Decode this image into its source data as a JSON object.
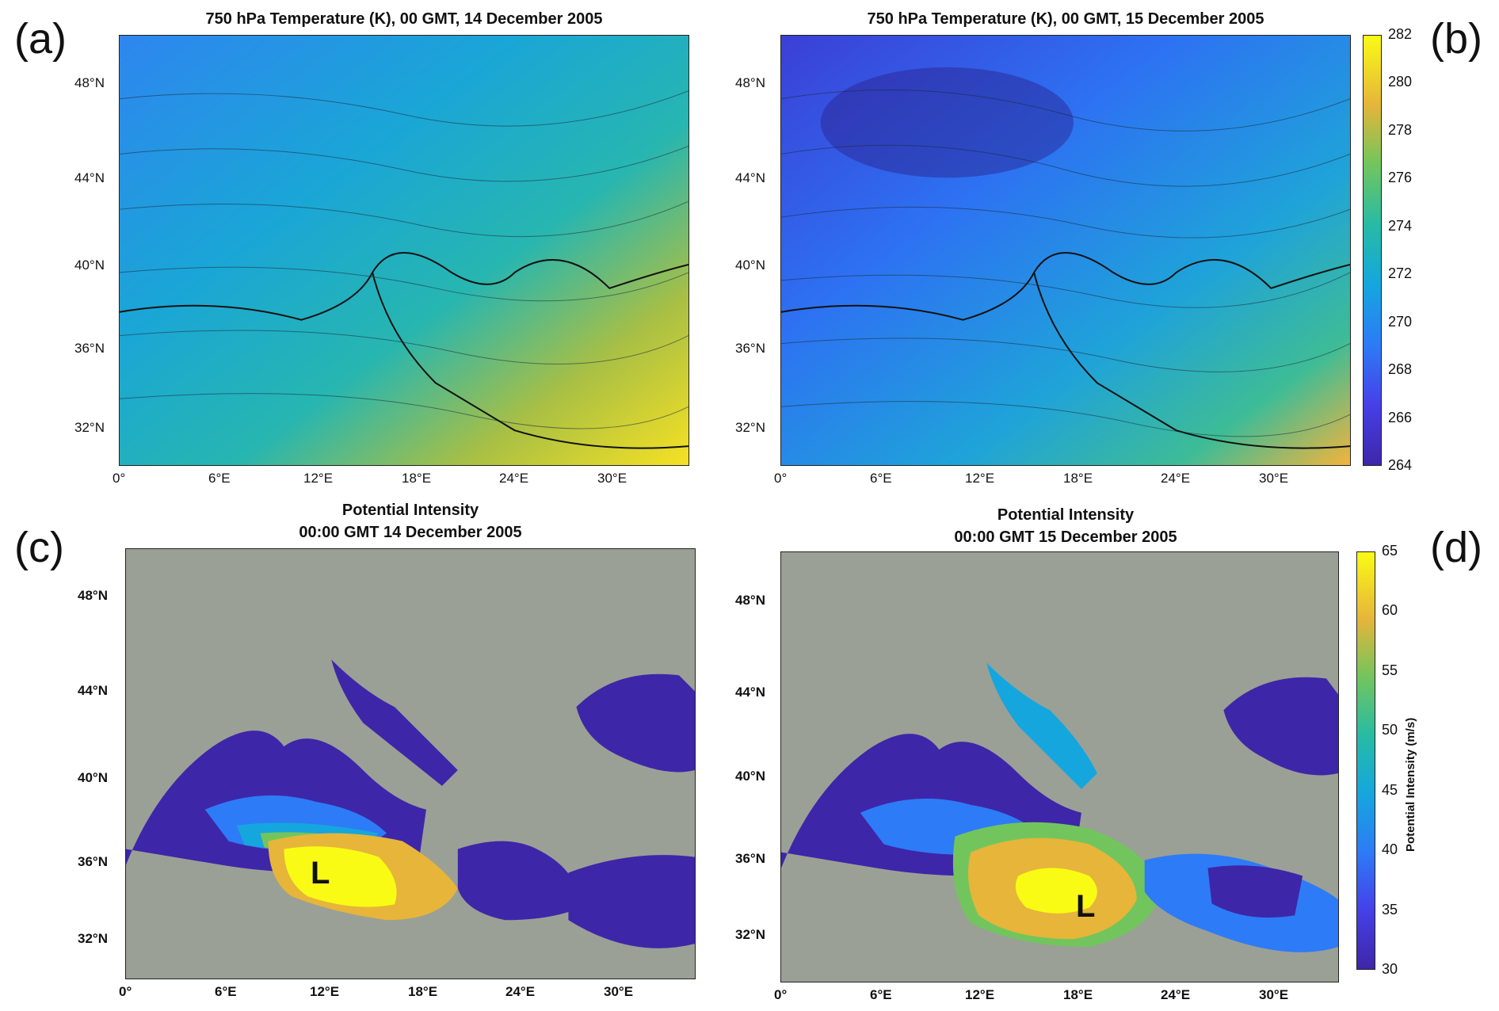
{
  "panels": {
    "a": {
      "letter": "(a)",
      "title": "750 hPa Temperature (K), 00 GMT, 14 December 2005",
      "lat_ticks": [
        "48°N",
        "44°N",
        "40°N",
        "36°N",
        "32°N"
      ],
      "lon_ticks": [
        "0°",
        "6°E",
        "12°E",
        "18°E",
        "24°E",
        "30°E"
      ]
    },
    "b": {
      "letter": "(b)",
      "title": "750 hPa Temperature (K), 00 GMT, 15 December 2005",
      "lat_ticks": [
        "48°N",
        "44°N",
        "40°N",
        "36°N",
        "32°N"
      ],
      "lon_ticks": [
        "0°",
        "6°E",
        "12°E",
        "18°E",
        "24°E",
        "30°E"
      ]
    },
    "c": {
      "letter": "(c)",
      "title_line1": "Potential Intensity",
      "title_line2": "00:00 GMT 14 December 2005",
      "lat_ticks": [
        "48°N",
        "44°N",
        "40°N",
        "36°N",
        "32°N"
      ],
      "lon_ticks": [
        "0°",
        "6°E",
        "12°E",
        "18°E",
        "24°E",
        "30°E"
      ],
      "low_label": "L"
    },
    "d": {
      "letter": "(d)",
      "title_line1": "Potential Intensity",
      "title_line2": "00:00 GMT 15 December 2005",
      "lat_ticks": [
        "48°N",
        "44°N",
        "40°N",
        "36°N",
        "32°N"
      ],
      "lon_ticks": [
        "0°",
        "6°E",
        "12°E",
        "18°E",
        "24°E",
        "30°E"
      ],
      "low_label": "L"
    }
  },
  "colorbars": {
    "temperature": {
      "ticks": [
        "282",
        "280",
        "278",
        "276",
        "274",
        "272",
        "270",
        "268",
        "266",
        "264"
      ],
      "range": [
        264,
        282
      ]
    },
    "potential_intensity": {
      "ticks": [
        "65",
        "60",
        "55",
        "50",
        "45",
        "40",
        "35",
        "30"
      ],
      "range": [
        30,
        65
      ],
      "label": "Potential Intensity (m/s)"
    }
  },
  "colors": {
    "land_gray": "#9aa096",
    "parula_low": "#3e26a8",
    "parula_high": "#f9fb15"
  }
}
